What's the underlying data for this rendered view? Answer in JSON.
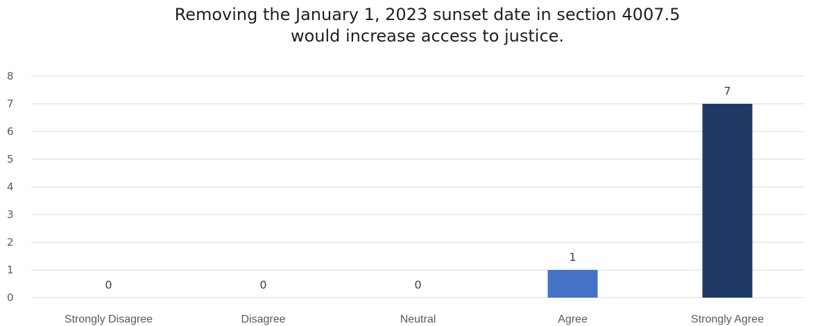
{
  "chart_data": {
    "type": "bar",
    "title_lines": [
      "Removing the January 1, 2023 sunset date in section 4007.5",
      "would increase access to justice."
    ],
    "categories": [
      "Strongly Disagree",
      "Disagree",
      "Neutral",
      "Agree",
      "Strongly Agree"
    ],
    "values": [
      0,
      0,
      0,
      1,
      7
    ],
    "data_labels": [
      "0",
      "0",
      "0",
      "1",
      "7"
    ],
    "bar_colors": [
      "#4472C4",
      "#4472C4",
      "#4472C4",
      "#4472C4",
      "#203864"
    ],
    "ylim": [
      0,
      8
    ],
    "yticks": [
      0,
      1,
      2,
      3,
      4,
      5,
      6,
      7,
      8
    ],
    "xlabel": "",
    "ylabel": "",
    "grid": true,
    "gridline_color": "#D9D9D9",
    "legend": "none"
  }
}
